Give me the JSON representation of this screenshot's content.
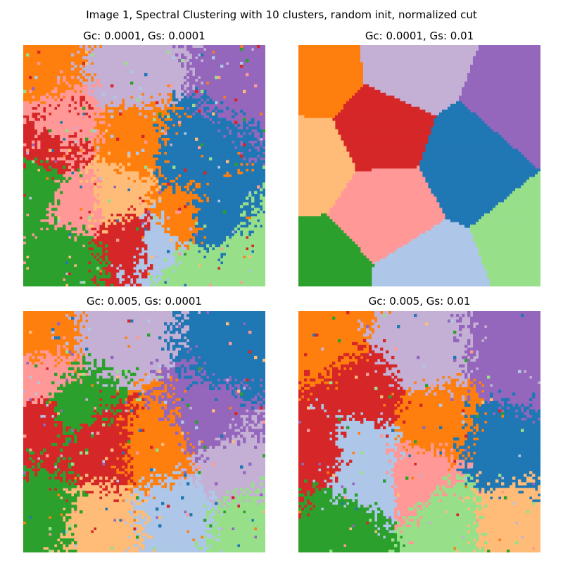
{
  "title": "Image 1, Spectral Clustering with 10 clusters, random init, normalized cut",
  "palette": {
    "0": "#ff7f0e",
    "1": "#c5b0d5",
    "2": "#9467bd",
    "3": "#aec7e8",
    "4": "#1f77b4",
    "5": "#d62728",
    "6": "#ff9896",
    "7": "#ffbb78",
    "8": "#2ca02c",
    "9": "#98df8a"
  },
  "palette_names": [
    "orange",
    "lavender",
    "purple",
    "light-blue",
    "blue",
    "red",
    "pink",
    "peach",
    "green",
    "light-green"
  ],
  "chart_data": [
    {
      "type": "heatmap",
      "title": "Gc: 0.0001, Gs: 0.0001",
      "n_clusters": 10,
      "grid": false,
      "axes": "off",
      "seed": 11,
      "noise": 0.42,
      "regions": [
        {
          "c": 1,
          "x": 0.45,
          "y": 0.1
        },
        {
          "c": 0,
          "x": 0.05,
          "y": 0.08
        },
        {
          "c": 2,
          "x": 0.9,
          "y": 0.12
        },
        {
          "c": 4,
          "x": 0.7,
          "y": 0.45
        },
        {
          "c": 4,
          "x": 0.78,
          "y": 0.72
        },
        {
          "c": 9,
          "x": 0.92,
          "y": 0.88
        },
        {
          "c": 9,
          "x": 0.7,
          "y": 0.95
        },
        {
          "c": 3,
          "x": 0.55,
          "y": 0.82
        },
        {
          "c": 0,
          "x": 0.45,
          "y": 0.4
        },
        {
          "c": 0,
          "x": 0.65,
          "y": 0.72
        },
        {
          "c": 7,
          "x": 0.38,
          "y": 0.62
        },
        {
          "c": 5,
          "x": 0.12,
          "y": 0.4
        },
        {
          "c": 5,
          "x": 0.45,
          "y": 0.8
        },
        {
          "c": 6,
          "x": 0.22,
          "y": 0.65
        },
        {
          "c": 6,
          "x": 0.15,
          "y": 0.35
        },
        {
          "c": 8,
          "x": 0.15,
          "y": 0.88
        },
        {
          "c": 8,
          "x": 0.05,
          "y": 0.6
        }
      ]
    },
    {
      "type": "heatmap",
      "title": "Gc: 0.0001, Gs: 0.01",
      "n_clusters": 10,
      "grid": false,
      "axes": "off",
      "seed": 22,
      "noise": 0.0,
      "regions": [
        {
          "c": 0,
          "x": 0.08,
          "y": 0.12
        },
        {
          "c": 1,
          "x": 0.45,
          "y": 0.08
        },
        {
          "c": 2,
          "x": 0.92,
          "y": 0.25
        },
        {
          "c": 5,
          "x": 0.33,
          "y": 0.35
        },
        {
          "c": 4,
          "x": 0.72,
          "y": 0.48
        },
        {
          "c": 7,
          "x": 0.05,
          "y": 0.48
        },
        {
          "c": 6,
          "x": 0.35,
          "y": 0.68
        },
        {
          "c": 9,
          "x": 0.98,
          "y": 0.8
        },
        {
          "c": 8,
          "x": 0.08,
          "y": 0.93
        },
        {
          "c": 3,
          "x": 0.53,
          "y": 0.97
        }
      ]
    },
    {
      "type": "heatmap",
      "title": "Gc: 0.005, Gs: 0.0001",
      "n_clusters": 10,
      "grid": false,
      "axes": "off",
      "seed": 33,
      "noise": 0.45,
      "regions": [
        {
          "c": 1,
          "x": 0.4,
          "y": 0.08
        },
        {
          "c": 0,
          "x": 0.05,
          "y": 0.1
        },
        {
          "c": 4,
          "x": 0.88,
          "y": 0.15
        },
        {
          "c": 2,
          "x": 0.75,
          "y": 0.45
        },
        {
          "c": 1,
          "x": 0.85,
          "y": 0.65
        },
        {
          "c": 9,
          "x": 0.92,
          "y": 0.9
        },
        {
          "c": 3,
          "x": 0.65,
          "y": 0.85
        },
        {
          "c": 0,
          "x": 0.55,
          "y": 0.55
        },
        {
          "c": 5,
          "x": 0.3,
          "y": 0.55
        },
        {
          "c": 5,
          "x": 0.08,
          "y": 0.45
        },
        {
          "c": 8,
          "x": 0.2,
          "y": 0.4
        },
        {
          "c": 8,
          "x": 0.08,
          "y": 0.85
        },
        {
          "c": 7,
          "x": 0.3,
          "y": 0.9
        },
        {
          "c": 6,
          "x": 0.05,
          "y": 0.28
        }
      ]
    },
    {
      "type": "heatmap",
      "title": "Gc: 0.005, Gs: 0.01",
      "n_clusters": 10,
      "grid": false,
      "axes": "off",
      "seed": 44,
      "noise": 0.32,
      "regions": [
        {
          "c": 0,
          "x": 0.1,
          "y": 0.1
        },
        {
          "c": 1,
          "x": 0.5,
          "y": 0.18
        },
        {
          "c": 2,
          "x": 0.9,
          "y": 0.2
        },
        {
          "c": 4,
          "x": 0.85,
          "y": 0.58
        },
        {
          "c": 7,
          "x": 0.85,
          "y": 0.88
        },
        {
          "c": 9,
          "x": 0.62,
          "y": 0.88
        },
        {
          "c": 0,
          "x": 0.55,
          "y": 0.45
        },
        {
          "c": 6,
          "x": 0.48,
          "y": 0.7
        },
        {
          "c": 3,
          "x": 0.25,
          "y": 0.55
        },
        {
          "c": 3,
          "x": 0.3,
          "y": 0.7
        },
        {
          "c": 5,
          "x": 0.08,
          "y": 0.55
        },
        {
          "c": 5,
          "x": 0.28,
          "y": 0.35
        },
        {
          "c": 8,
          "x": 0.2,
          "y": 0.9
        }
      ]
    }
  ]
}
